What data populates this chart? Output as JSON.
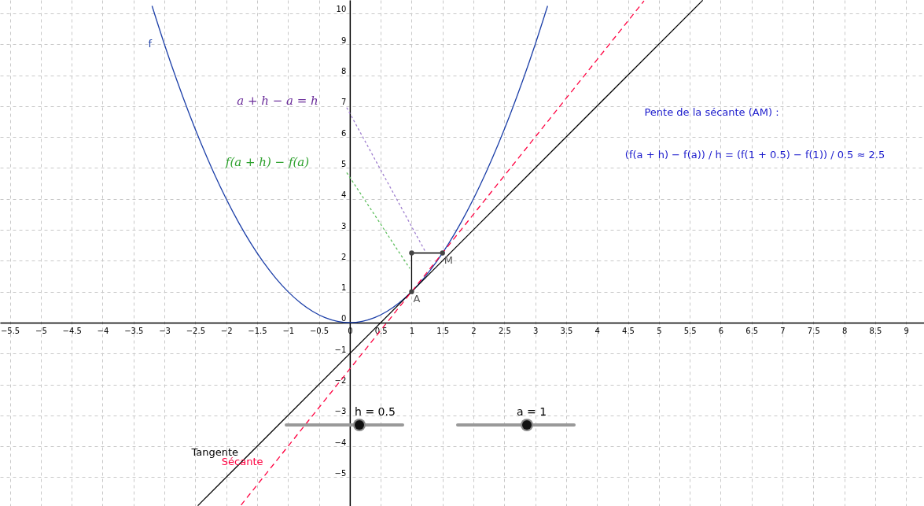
{
  "chart_data": {
    "type": "line",
    "xlim": [
      -5.66,
      9.29
    ],
    "ylim": [
      -5.93,
      10.43
    ],
    "xticks": [
      -5.5,
      -5,
      -4.5,
      -4,
      -3.5,
      -3,
      -2.5,
      -2,
      -1.5,
      -1,
      -0.5,
      0,
      0.5,
      1,
      1.5,
      2,
      2.5,
      3,
      3.5,
      4,
      4.5,
      5,
      5.5,
      6,
      6.5,
      7,
      7.5,
      8,
      8.5,
      9
    ],
    "yticks": [
      -5,
      -4,
      -3,
      -2,
      -1,
      0,
      1,
      2,
      3,
      4,
      5,
      6,
      7,
      8,
      9,
      10
    ],
    "grid": true,
    "marker": "none",
    "series": [
      {
        "name": "f",
        "color": "#1c3fa8",
        "x": [
          -3.2,
          -3,
          -2.8,
          -2.6,
          -2.4,
          -2.2,
          -2,
          -1.8,
          -1.6,
          -1.4,
          -1.2,
          -1,
          -0.8,
          -0.6,
          -0.4,
          -0.2,
          0,
          0.2,
          0.4,
          0.6,
          0.8,
          1,
          1.2,
          1.4,
          1.6,
          1.8,
          2,
          2.2,
          2.4,
          2.6,
          2.8,
          3,
          3.2
        ],
        "values": [
          10.24,
          9,
          7.84,
          6.76,
          5.76,
          4.84,
          4,
          3.24,
          2.56,
          1.96,
          1.44,
          1,
          0.64,
          0.36,
          0.16,
          0.04,
          0,
          0.04,
          0.16,
          0.36,
          0.64,
          1,
          1.44,
          1.96,
          2.56,
          3.24,
          4,
          4.84,
          5.76,
          6.76,
          7.84,
          9,
          10.24
        ]
      },
      {
        "name": "Tangente",
        "color": "#000000",
        "x": [
          -2.46,
          -1.6,
          5.71
        ],
        "values": [
          -5.92,
          -4.2,
          10.42
        ]
      },
      {
        "name": "Sécante",
        "color": "#ff0040",
        "line_style": "dashed",
        "x": [
          -1.76,
          -1.2,
          4.76
        ],
        "values": [
          -5.9,
          -4.5,
          10.4
        ]
      },
      {
        "color": "#000000",
        "x": [
          1,
          1
        ],
        "values": [
          2.25,
          1
        ]
      },
      {
        "color": "#000000",
        "x": [
          1,
          1.5
        ],
        "values": [
          2.25,
          2.25
        ]
      },
      {
        "color": "#9f7fcf",
        "line_style": "dotted",
        "x": [
          -0.05,
          1.22
        ],
        "values": [
          6.95,
          2.3
        ]
      },
      {
        "color": "#5fbf5f",
        "line_style": "dotted",
        "x": [
          -0.05,
          0.97
        ],
        "values": [
          4.85,
          1.75
        ]
      },
      {
        "type": "scatter",
        "marker": "circle",
        "color": "#444444",
        "x": [
          1,
          1.5,
          1
        ],
        "values": [
          1,
          2.25,
          2.25
        ]
      }
    ],
    "annotations": [
      {
        "text": "A",
        "x": 1,
        "y": 1
      },
      {
        "text": "M",
        "x": 1.5,
        "y": 2.25
      },
      "a + h − a = h",
      "f(a + h) − f(a)",
      "Pente de la sécante (AM) :",
      "(f(a + h) − f(a)) / h = (f(1 + 0.5) − f(1)) / 0.5 ≈ 2.5",
      "h = 0.5",
      "a = 1"
    ]
  }
}
